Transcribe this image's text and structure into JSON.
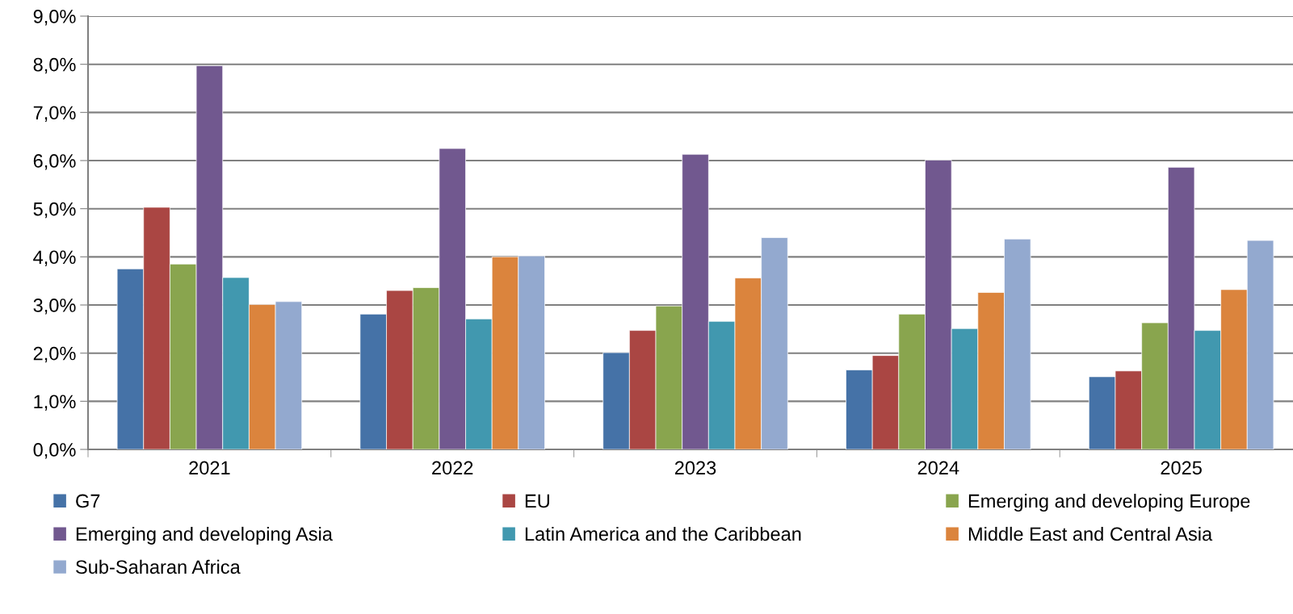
{
  "chart_data": {
    "type": "bar",
    "categories": [
      "2021",
      "2022",
      "2023",
      "2024",
      "2025"
    ],
    "series": [
      {
        "name": "G7",
        "color": "#4572a7",
        "values": [
          3.75,
          2.81,
          2.01,
          1.65,
          1.51
        ]
      },
      {
        "name": "EU",
        "color": "#aa4643",
        "values": [
          5.03,
          3.3,
          2.47,
          1.95,
          1.63
        ]
      },
      {
        "name": "Emerging and developing Europe",
        "color": "#89a54e",
        "values": [
          3.85,
          3.36,
          2.98,
          2.81,
          2.63
        ]
      },
      {
        "name": "Emerging and developing Asia",
        "color": "#71588f",
        "values": [
          7.97,
          6.25,
          6.13,
          6.01,
          5.86
        ]
      },
      {
        "name": "Latin America and the Caribbean",
        "color": "#4198af",
        "values": [
          3.57,
          2.71,
          2.66,
          2.51,
          2.47
        ]
      },
      {
        "name": "Middle East and Central Asia",
        "color": "#db843d",
        "values": [
          3.01,
          4.0,
          3.56,
          3.26,
          3.32
        ]
      },
      {
        "name": "Sub-Saharan Africa",
        "color": "#93a9cf",
        "values": [
          3.07,
          4.02,
          4.4,
          4.37,
          4.34
        ]
      }
    ],
    "ylim": [
      0,
      9
    ],
    "yticks": [
      {
        "value": 0,
        "label": "0,0%"
      },
      {
        "value": 1,
        "label": "1,0%"
      },
      {
        "value": 2,
        "label": "2,0%"
      },
      {
        "value": 3,
        "label": "3,0%"
      },
      {
        "value": 4,
        "label": "4,0%"
      },
      {
        "value": 5,
        "label": "5,0%"
      },
      {
        "value": 6,
        "label": "6,0%"
      },
      {
        "value": 7,
        "label": "7,0%"
      },
      {
        "value": 8,
        "label": "8,0%"
      },
      {
        "value": 9,
        "label": "9,0%"
      }
    ],
    "grid": "y",
    "legend": "bottom"
  }
}
